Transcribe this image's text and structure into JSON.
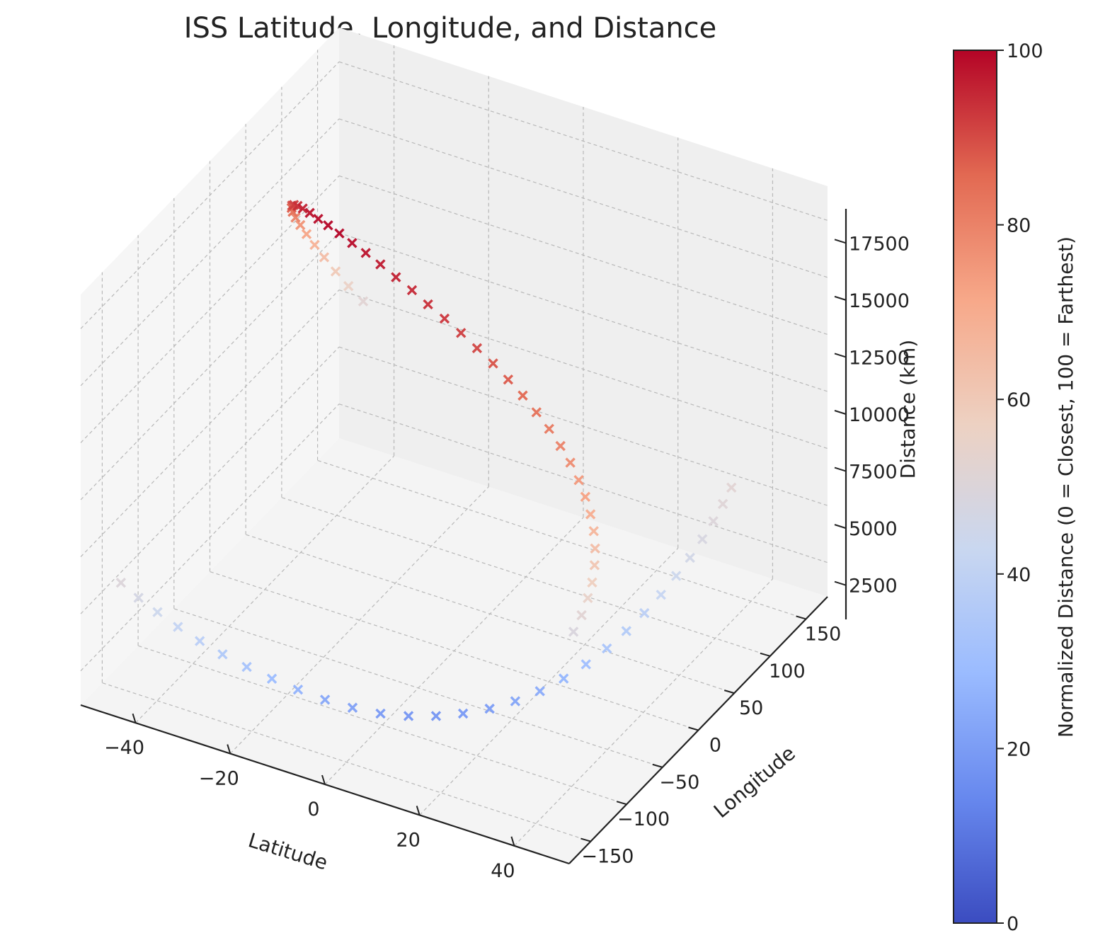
{
  "chart_data": {
    "type": "scatter",
    "projection": "3d",
    "title": "ISS Latitude, Longitude, and Distance",
    "xlabel": "Latitude",
    "ylabel": "Longitude",
    "zlabel": "Distance (km)",
    "marker": "x",
    "x_ticks": [
      -40,
      -20,
      0,
      20,
      40
    ],
    "y_ticks": [
      -150,
      -100,
      -50,
      0,
      50,
      100,
      150
    ],
    "z_ticks": [
      2500,
      5000,
      7500,
      10000,
      12500,
      15000,
      17500
    ],
    "xlim": [
      -51.6,
      51.6
    ],
    "ylim": [
      -180,
      180
    ],
    "zlim": [
      1000,
      19000
    ],
    "grid": true,
    "colorbar": {
      "label": "Normalized Distance (0 = Closest, 100 = Farthest)",
      "colormap": "coolwarm",
      "range": [
        0,
        100
      ],
      "ticks": [
        0,
        20,
        40,
        60,
        80,
        100
      ],
      "colors": [
        "#3b4cc0",
        "#6788ee",
        "#9abbff",
        "#c9d7f0",
        "#edd1c2",
        "#f7a889",
        "#e26952",
        "#b40426"
      ]
    },
    "series": [
      {
        "points": [
          {
            "lat": 51.0,
            "lon": -170,
            "dist": 10800,
            "norm": 49
          },
          {
            "lat": 51.5,
            "lon": -162,
            "dist": 11300,
            "norm": 52
          },
          {
            "lat": 51.6,
            "lon": -154,
            "dist": 11800,
            "norm": 55
          },
          {
            "lat": 51.3,
            "lon": -146,
            "dist": 12200,
            "norm": 58
          },
          {
            "lat": 50.6,
            "lon": -138,
            "dist": 12650,
            "norm": 61
          },
          {
            "lat": 49.5,
            "lon": -130,
            "dist": 13050,
            "norm": 64
          },
          {
            "lat": 48.0,
            "lon": -122,
            "dist": 13450,
            "norm": 67
          },
          {
            "lat": 46.1,
            "lon": -114,
            "dist": 13800,
            "norm": 70
          },
          {
            "lat": 43.8,
            "lon": -106,
            "dist": 14150,
            "norm": 73
          },
          {
            "lat": 41.2,
            "lon": -98,
            "dist": 14450,
            "norm": 75
          },
          {
            "lat": 38.2,
            "lon": -90,
            "dist": 14750,
            "norm": 78
          },
          {
            "lat": 34.9,
            "lon": -82,
            "dist": 15000,
            "norm": 80
          },
          {
            "lat": 31.3,
            "lon": -74,
            "dist": 15250,
            "norm": 82
          },
          {
            "lat": 27.4,
            "lon": -66,
            "dist": 15450,
            "norm": 84
          },
          {
            "lat": 23.3,
            "lon": -58,
            "dist": 15650,
            "norm": 86
          },
          {
            "lat": 19.0,
            "lon": -50,
            "dist": 15800,
            "norm": 88
          },
          {
            "lat": 14.6,
            "lon": -42,
            "dist": 15950,
            "norm": 89
          },
          {
            "lat": 10.0,
            "lon": -34,
            "dist": 16050,
            "norm": 91
          },
          {
            "lat": 5.4,
            "lon": -26,
            "dist": 16150,
            "norm": 92
          },
          {
            "lat": 0.7,
            "lon": -18,
            "dist": 16200,
            "norm": 93
          },
          {
            "lat": -4.0,
            "lon": -10,
            "dist": 16250,
            "norm": 94
          },
          {
            "lat": -8.6,
            "lon": -2,
            "dist": 16300,
            "norm": 95
          },
          {
            "lat": -13.2,
            "lon": 6,
            "dist": 16300,
            "norm": 96
          },
          {
            "lat": -17.7,
            "lon": 14,
            "dist": 16300,
            "norm": 97
          },
          {
            "lat": -22.0,
            "lon": 22,
            "dist": 16250,
            "norm": 98
          },
          {
            "lat": -26.1,
            "lon": 30,
            "dist": 16150,
            "norm": 99
          },
          {
            "lat": -30.0,
            "lon": 38,
            "dist": 16050,
            "norm": 100
          },
          {
            "lat": -33.6,
            "lon": 46,
            "dist": 15900,
            "norm": 100
          },
          {
            "lat": -36.9,
            "lon": 54,
            "dist": 15700,
            "norm": 99
          },
          {
            "lat": -39.9,
            "lon": 62,
            "dist": 15500,
            "norm": 98
          },
          {
            "lat": -42.6,
            "lon": 70,
            "dist": 15250,
            "norm": 96
          },
          {
            "lat": -44.9,
            "lon": 78,
            "dist": 14950,
            "norm": 94
          },
          {
            "lat": -46.9,
            "lon": 86,
            "dist": 14600,
            "norm": 92
          },
          {
            "lat": -48.5,
            "lon": 94,
            "dist": 14200,
            "norm": 90
          },
          {
            "lat": -49.8,
            "lon": 102,
            "dist": 13750,
            "norm": 87
          },
          {
            "lat": -50.8,
            "lon": 110,
            "dist": 13250,
            "norm": 84
          },
          {
            "lat": -51.4,
            "lon": 118,
            "dist": 12700,
            "norm": 80
          },
          {
            "lat": -51.6,
            "lon": 126,
            "dist": 12100,
            "norm": 76
          },
          {
            "lat": -51.5,
            "lon": 134,
            "dist": 11450,
            "norm": 72
          },
          {
            "lat": -51.0,
            "lon": 142,
            "dist": 10750,
            "norm": 68
          },
          {
            "lat": -50.2,
            "lon": 150,
            "dist": 10000,
            "norm": 64
          },
          {
            "lat": -49.0,
            "lon": 158,
            "dist": 9200,
            "norm": 60
          },
          {
            "lat": -47.5,
            "lon": 166,
            "dist": 8400,
            "norm": 56
          },
          {
            "lat": -45.6,
            "lon": 174,
            "dist": 7600,
            "norm": 52
          },
          {
            "lat": -43.4,
            "lon": -178,
            "dist": 6850,
            "norm": 50
          },
          {
            "lat": -40.9,
            "lon": -170,
            "dist": 6100,
            "norm": 47
          },
          {
            "lat": -38.1,
            "lon": -162,
            "dist": 5400,
            "norm": 44
          },
          {
            "lat": -35.0,
            "lon": -154,
            "dist": 4700,
            "norm": 41
          },
          {
            "lat": -31.6,
            "lon": -146,
            "dist": 4050,
            "norm": 38
          },
          {
            "lat": -28.0,
            "lon": -138,
            "dist": 3450,
            "norm": 35
          },
          {
            "lat": -24.1,
            "lon": -130,
            "dist": 2900,
            "norm": 32
          },
          {
            "lat": -20.0,
            "lon": -122,
            "dist": 2400,
            "norm": 29
          },
          {
            "lat": -15.7,
            "lon": -114,
            "dist": 1950,
            "norm": 26
          },
          {
            "lat": -11.2,
            "lon": -106,
            "dist": 1550,
            "norm": 23
          },
          {
            "lat": -6.6,
            "lon": -98,
            "dist": 1250,
            "norm": 21
          },
          {
            "lat": -1.9,
            "lon": -90,
            "dist": 1050,
            "norm": 19
          },
          {
            "lat": 2.8,
            "lon": -82,
            "dist": 1000,
            "norm": 18
          },
          {
            "lat": 7.4,
            "lon": -74,
            "dist": 1050,
            "norm": 18
          },
          {
            "lat": 11.9,
            "lon": -66,
            "dist": 1200,
            "norm": 19
          },
          {
            "lat": 16.3,
            "lon": -58,
            "dist": 1450,
            "norm": 20
          },
          {
            "lat": 20.5,
            "lon": -50,
            "dist": 1800,
            "norm": 22
          },
          {
            "lat": 24.5,
            "lon": -42,
            "dist": 2250,
            "norm": 24
          },
          {
            "lat": 28.3,
            "lon": -34,
            "dist": 2800,
            "norm": 27
          },
          {
            "lat": 31.8,
            "lon": -26,
            "dist": 3400,
            "norm": 30
          },
          {
            "lat": 35.0,
            "lon": -18,
            "dist": 4050,
            "norm": 33
          },
          {
            "lat": 37.9,
            "lon": -10,
            "dist": 4750,
            "norm": 36
          },
          {
            "lat": 40.5,
            "lon": -2,
            "dist": 5450,
            "norm": 39
          },
          {
            "lat": 42.8,
            "lon": 6,
            "dist": 6150,
            "norm": 42
          },
          {
            "lat": 44.8,
            "lon": 14,
            "dist": 6850,
            "norm": 44
          },
          {
            "lat": 46.5,
            "lon": 22,
            "dist": 7500,
            "norm": 46
          },
          {
            "lat": 47.9,
            "lon": 30,
            "dist": 8150,
            "norm": 48
          },
          {
            "lat": 49.0,
            "lon": 38,
            "dist": 8750,
            "norm": 50
          },
          {
            "lat": 49.8,
            "lon": 46,
            "dist": 9300,
            "norm": 51
          },
          {
            "lat": 50.4,
            "lon": 54,
            "dist": 9800,
            "norm": 52
          }
        ]
      }
    ]
  }
}
